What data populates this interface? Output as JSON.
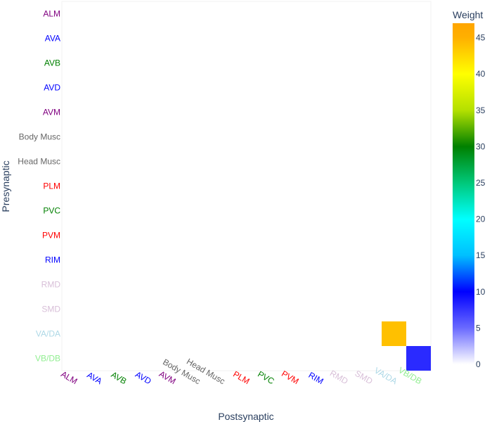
{
  "chart_data": {
    "type": "heatmap",
    "xlabel": "Postsynaptic",
    "ylabel": "Presynaptic",
    "x_categories": [
      "ALM",
      "AVA",
      "AVB",
      "AVD",
      "AVM",
      "Body Musc",
      "Head Musc",
      "PLM",
      "PVC",
      "PVM",
      "RIM",
      "RMD",
      "SMD",
      "VA/DA",
      "VB/DB"
    ],
    "y_categories": [
      "ALM",
      "AVA",
      "AVB",
      "AVD",
      "AVM",
      "Body Musc",
      "Head Musc",
      "PLM",
      "PVC",
      "PVM",
      "RIM",
      "RMD",
      "SMD",
      "VA/DA",
      "VB/DB"
    ],
    "category_colors": {
      "ALM": "#800080",
      "AVA": "#0000ff",
      "AVB": "#008000",
      "AVD": "#0000ff",
      "AVM": "#800080",
      "Body Musc": "#666666",
      "Head Musc": "#666666",
      "PLM": "#ff0000",
      "PVC": "#008000",
      "PVM": "#ff0000",
      "RIM": "#0000ff",
      "RMD": "#d8bfd8",
      "SMD": "#d8bfd8",
      "VA/DA": "#add8e6",
      "VB/DB": "#90ee90"
    },
    "cells": [
      {
        "pre": "VA/DA",
        "post": "VA/DA",
        "weight": 44
      },
      {
        "pre": "VB/DB",
        "post": "VB/DB",
        "weight": 8
      }
    ],
    "colorbar": {
      "title": "Weight",
      "min": 0,
      "max": 47,
      "ticks": [
        0,
        5,
        10,
        15,
        20,
        25,
        30,
        35,
        40,
        45
      ],
      "colorscale": [
        [
          0,
          "#ffffff"
        ],
        [
          5,
          "#6a6aff"
        ],
        [
          10,
          "#0000ff"
        ],
        [
          15,
          "#00bfff"
        ],
        [
          20,
          "#00ffff"
        ],
        [
          25,
          "#00c87a"
        ],
        [
          30,
          "#008000"
        ],
        [
          35,
          "#b4e000"
        ],
        [
          40,
          "#ffff00"
        ],
        [
          45,
          "#ffb000"
        ],
        [
          47,
          "#ffa500"
        ]
      ]
    }
  }
}
